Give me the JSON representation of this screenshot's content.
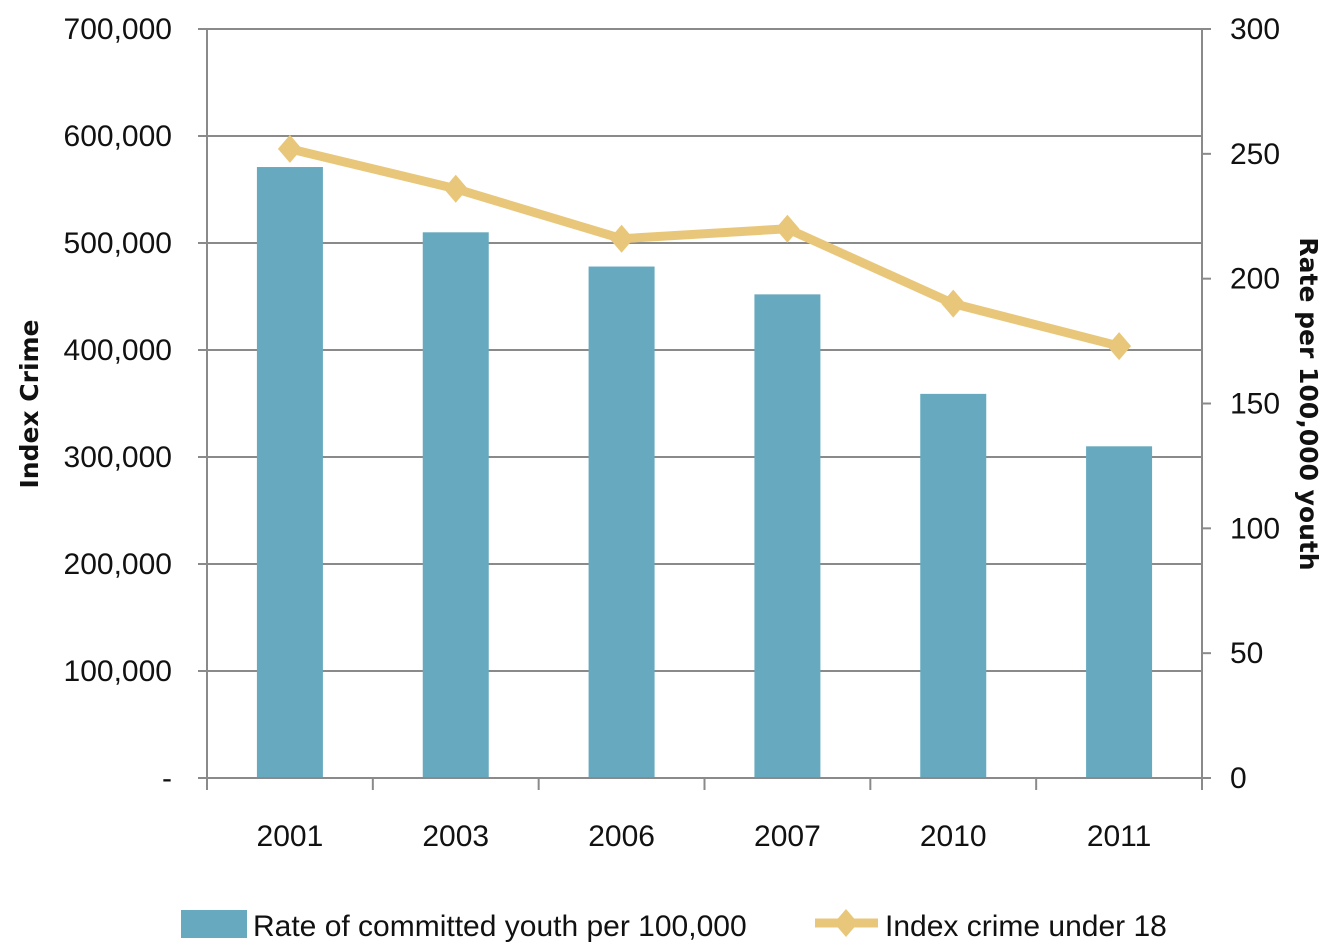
{
  "chart_data": {
    "type": "bar",
    "categories": [
      "2001",
      "2003",
      "2006",
      "2007",
      "2010",
      "2011"
    ],
    "series": [
      {
        "name": "Rate of committed youth per 100,000",
        "type": "bar",
        "axis": "left",
        "values": [
          571000,
          510000,
          478000,
          452000,
          359000,
          310000
        ],
        "color": "#67aabf"
      },
      {
        "name": "Index crime under 18",
        "type": "line",
        "axis": "right",
        "values": [
          252,
          236,
          216,
          220,
          190,
          173
        ],
        "color": "#e9c77a",
        "marker": "diamond"
      }
    ],
    "title": "",
    "xlabel": "",
    "ylabel": "Index Crime",
    "y2label": "Rate per 100,000 youth",
    "ylim": [
      0,
      700000
    ],
    "y2lim": [
      0,
      300
    ],
    "yticks": [
      "-",
      "100,000",
      "200,000",
      "300,000",
      "400,000",
      "500,000",
      "600,000",
      "700,000"
    ],
    "y2ticks": [
      "0",
      "50",
      "100",
      "150",
      "200",
      "250",
      "300"
    ],
    "grid": true,
    "legend": "bottom"
  }
}
